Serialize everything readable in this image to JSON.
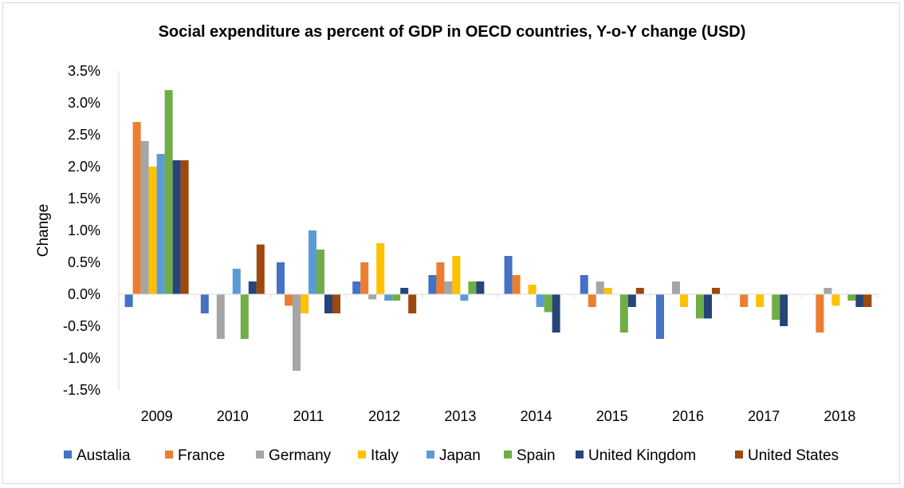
{
  "chart_data": {
    "type": "bar",
    "title": "Social expenditure as percent of GDP in OECD countries, Y-o-Y change (USD)",
    "xlabel": "",
    "ylabel": "Change",
    "ylim": [
      -1.5,
      3.5
    ],
    "yticks": [
      3.5,
      3.0,
      2.5,
      2.0,
      1.5,
      1.0,
      0.5,
      0.0,
      -0.5,
      -1.0,
      -1.5
    ],
    "ytick_labels": [
      "3.5%",
      "3.0%",
      "2.5%",
      "2.0%",
      "1.5%",
      "1.0%",
      "0.5%",
      "0.0%",
      "-0.5%",
      "-1.0%",
      "-1.5%"
    ],
    "grid": false,
    "legend_position": "bottom",
    "categories": [
      "2009",
      "2010",
      "2011",
      "2012",
      "2013",
      "2014",
      "2015",
      "2016",
      "2017",
      "2018"
    ],
    "series": [
      {
        "name": "Austalia",
        "color": "#4472C4",
        "values": [
          -0.2,
          -0.3,
          0.5,
          0.2,
          0.3,
          0.6,
          0.3,
          -0.7,
          0,
          0
        ]
      },
      {
        "name": "France",
        "color": "#ED7D31",
        "values": [
          2.7,
          0,
          -0.18,
          0.5,
          0.5,
          0.3,
          -0.2,
          0,
          -0.2,
          -0.6
        ]
      },
      {
        "name": "Germany",
        "color": "#A5A5A5",
        "values": [
          2.4,
          -0.7,
          -1.2,
          -0.08,
          0.2,
          0,
          0.2,
          0.2,
          0,
          0.1
        ]
      },
      {
        "name": "Italy",
        "color": "#FFC000",
        "values": [
          2.0,
          0,
          -0.3,
          0.8,
          0.6,
          0.15,
          0.1,
          -0.2,
          -0.2,
          -0.18
        ]
      },
      {
        "name": "Japan",
        "color": "#5B9BD5",
        "values": [
          2.2,
          0.4,
          1.0,
          -0.1,
          -0.1,
          -0.2,
          0,
          0,
          0,
          0
        ]
      },
      {
        "name": "Spain",
        "color": "#70AD47",
        "values": [
          3.2,
          -0.7,
          0.7,
          -0.1,
          0.2,
          -0.28,
          -0.6,
          -0.38,
          -0.4,
          -0.1
        ]
      },
      {
        "name": "United Kingdom",
        "color": "#264478",
        "values": [
          2.1,
          0.2,
          -0.3,
          0.1,
          0.2,
          -0.6,
          -0.2,
          -0.38,
          -0.5,
          -0.2
        ]
      },
      {
        "name": "United States",
        "color": "#9E480E",
        "values": [
          2.1,
          0.78,
          -0.3,
          -0.3,
          0,
          0,
          0.1,
          0.1,
          0,
          -0.2
        ]
      }
    ]
  }
}
